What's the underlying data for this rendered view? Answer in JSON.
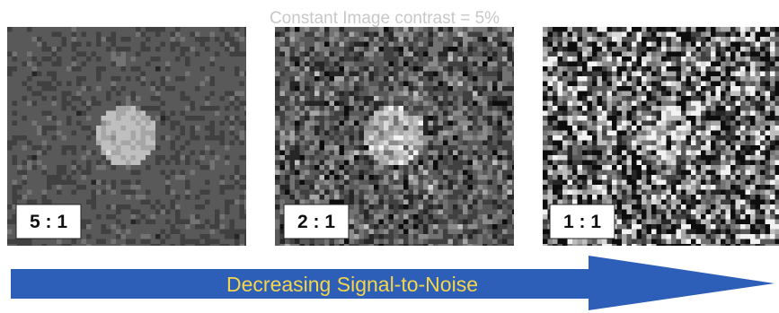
{
  "title": "Constant Image contrast = 5%",
  "panels": [
    {
      "label": "5 : 1"
    },
    {
      "label": "2 : 1"
    },
    {
      "label": "1 : 1"
    }
  ],
  "arrow": {
    "label": "Decreasing Signal-to-Noise"
  }
}
